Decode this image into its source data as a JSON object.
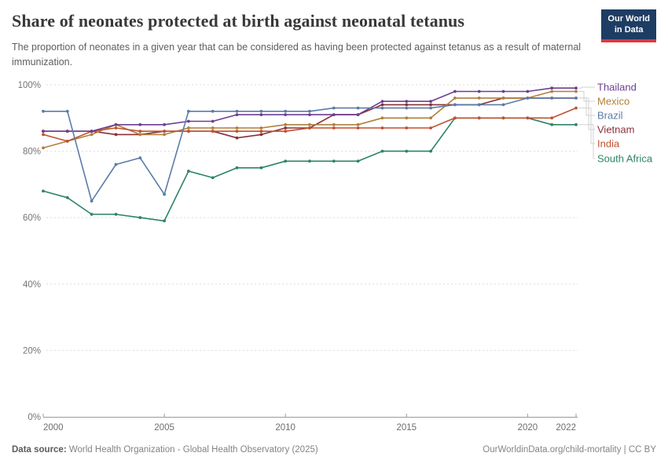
{
  "header": {
    "title": "Share of neonates protected at birth against neonatal tetanus",
    "subtitle": "The proportion of neonates in a given year that can be considered as having been protected against tetanus as a result of maternal immunization.",
    "logo": {
      "line1": "Our World",
      "line2": "in Data",
      "bg_color": "#1D3D63",
      "accent_color": "#E0373F"
    }
  },
  "chart_data": {
    "type": "line",
    "x": [
      2000,
      2001,
      2002,
      2003,
      2004,
      2005,
      2006,
      2007,
      2008,
      2009,
      2010,
      2011,
      2012,
      2013,
      2014,
      2015,
      2016,
      2017,
      2018,
      2019,
      2020,
      2021,
      2022
    ],
    "series": [
      {
        "name": "Thailand",
        "color": "#6D3E91",
        "values": [
          86,
          86,
          86,
          88,
          88,
          88,
          89,
          89,
          91,
          91,
          91,
          91,
          91,
          91,
          95,
          95,
          95,
          98,
          98,
          98,
          98,
          99,
          99
        ]
      },
      {
        "name": "Mexico",
        "color": "#B17F3A",
        "values": [
          81,
          83,
          85,
          88,
          85,
          85,
          87,
          87,
          87,
          87,
          88,
          88,
          88,
          88,
          90,
          90,
          90,
          96,
          96,
          96,
          96,
          98,
          98
        ]
      },
      {
        "name": "Brazil",
        "color": "#5B7BA8",
        "values": [
          92,
          92,
          65,
          76,
          78,
          67,
          92,
          92,
          92,
          92,
          92,
          92,
          93,
          93,
          93,
          93,
          93,
          94,
          94,
          94,
          96,
          96,
          96
        ]
      },
      {
        "name": "Vietnam",
        "color": "#883039",
        "values": [
          86,
          86,
          86,
          85,
          85,
          86,
          86,
          86,
          84,
          85,
          87,
          87,
          91,
          91,
          94,
          94,
          94,
          94,
          94,
          96,
          96,
          96,
          96
        ]
      },
      {
        "name": "India",
        "color": "#C0512F",
        "values": [
          85,
          83,
          86,
          87,
          86,
          86,
          86,
          86,
          86,
          86,
          86,
          87,
          87,
          87,
          87,
          87,
          87,
          90,
          90,
          90,
          90,
          90,
          93
        ]
      },
      {
        "name": "South Africa",
        "color": "#2C8465",
        "values": [
          68,
          66,
          61,
          61,
          60,
          59,
          74,
          72,
          75,
          75,
          77,
          77,
          77,
          77,
          80,
          80,
          80,
          90,
          90,
          90,
          90,
          88,
          88
        ]
      }
    ],
    "ylim": [
      0,
      100
    ],
    "yticks": [
      0,
      20,
      40,
      60,
      80,
      100
    ],
    "y_tick_suffix": "%",
    "xticks": [
      2000,
      2005,
      2010,
      2015,
      2020,
      2022
    ],
    "grid": "horizontal-dashed",
    "legend_position": "right"
  },
  "footer": {
    "source_label": "Data source:",
    "source_text": " World Health Organization - Global Health Observatory (2025)",
    "credit": "OurWorldinData.org/child-mortality | CC BY"
  }
}
